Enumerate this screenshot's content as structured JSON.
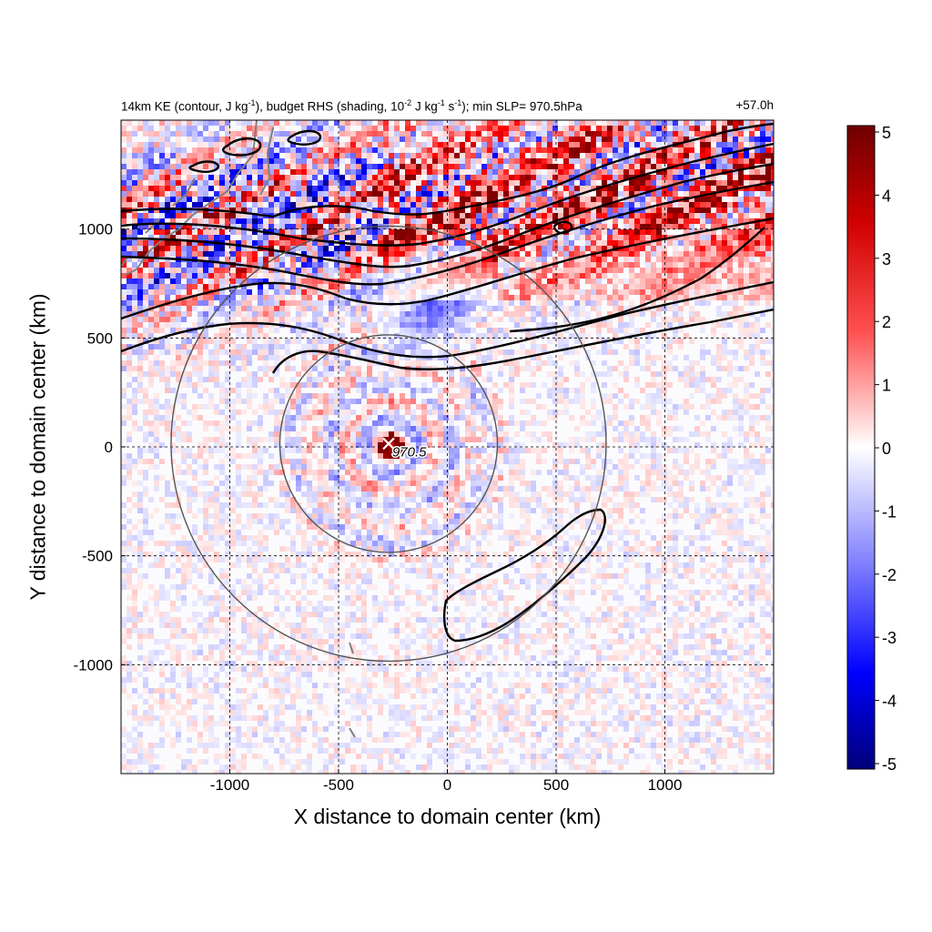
{
  "title": {
    "left_prefix": "14km KE (contour, J kg",
    "left_sup1": "-1",
    "left_mid": "), budget RHS (shading, 10",
    "left_sup2": "-2",
    "left_mid2": " J kg",
    "left_sup3": "-1",
    "left_mid3": " s",
    "left_sup4": "-1",
    "left_suffix": "); min SLP= 970.5hPa",
    "right": "+57.0h"
  },
  "chart_data": {
    "type": "heatmap",
    "xlabel": "X distance to domain center (km)",
    "ylabel": "Y distance to domain center (km)",
    "xlim": [
      -1500,
      1500
    ],
    "ylim": [
      -1500,
      1500
    ],
    "x_ticks": [
      -1000,
      -500,
      0,
      500,
      1000
    ],
    "x_tick_labels": [
      "-1000",
      "-500",
      "0",
      "500",
      "1000"
    ],
    "y_ticks": [
      -1000,
      -500,
      0,
      500,
      1000
    ],
    "y_tick_labels": [
      "-1000",
      "-500",
      "0",
      "500",
      "1000"
    ],
    "grid": "dashed",
    "colorbar": {
      "min": -5,
      "max": 5,
      "ticks": [
        5,
        4,
        3,
        2,
        1,
        0,
        -1,
        -2,
        -3,
        -4,
        -5
      ],
      "tick_labels": [
        "5",
        "4",
        "3",
        "2",
        "1",
        "0",
        "-1",
        "-2",
        "-3",
        "-4",
        "-5"
      ],
      "colormap": "blue-white-red",
      "colors": {
        "min": "#00008b",
        "neg": "#0000ff",
        "zero": "#ffffff",
        "pos": "#ff0000",
        "max": "#800000"
      }
    },
    "storm_center": {
      "x": -270,
      "y": 15,
      "label": "970.5"
    },
    "rings_km": [
      500,
      1000
    ],
    "contour_color": "#000000",
    "coastline_color": "#808080"
  }
}
